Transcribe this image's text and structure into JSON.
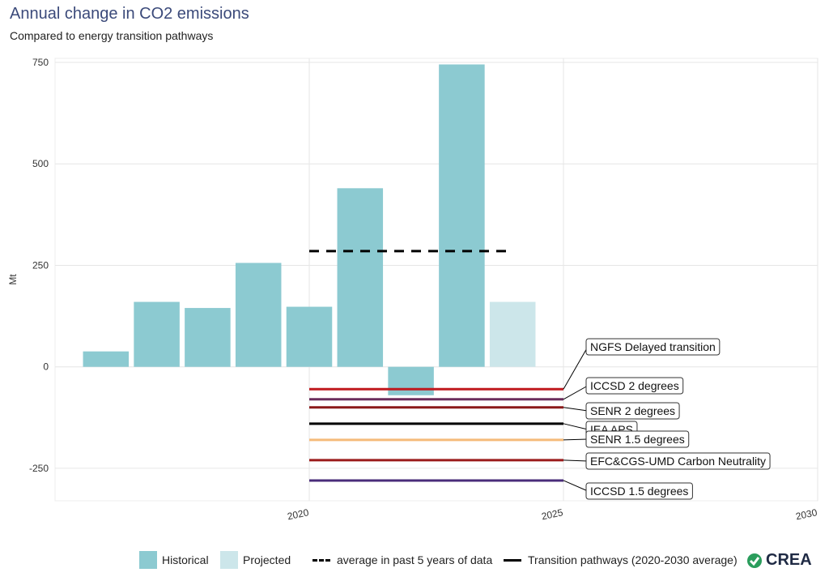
{
  "chart_data": {
    "type": "bar",
    "title": "Annual change in CO2 emissions",
    "subtitle": "Compared to energy transition pathways",
    "ylabel": "Mt",
    "ylim": [
      -330,
      760
    ],
    "xlim": [
      2015.0,
      2030.0
    ],
    "x_ticks": [
      2020,
      2025,
      2030
    ],
    "y_ticks": [
      -250,
      0,
      250,
      500,
      750
    ],
    "grid": true,
    "legend_position": "bottom",
    "series": [
      {
        "name": "Historical",
        "color": "#8ccad1",
        "x": [
          2016,
          2017,
          2018,
          2019,
          2020,
          2021,
          2022,
          2023
        ],
        "values": [
          38,
          160,
          145,
          256,
          148,
          440,
          -70,
          745
        ]
      },
      {
        "name": "Projected",
        "color": "#cce6ea",
        "x": [
          2024
        ],
        "values": [
          160
        ]
      }
    ],
    "average": {
      "name": "average in past 5 years of data",
      "value": 285,
      "x_start": 2020,
      "x_end": 2024
    },
    "pathways_legend": "Transition pathways (2020-2030 average)",
    "pathways": [
      {
        "name": "NGFS Delayed transition",
        "value": -55,
        "color": "#c0191e"
      },
      {
        "name": "ICCSD 2 degrees",
        "value": -80,
        "color": "#6b2d5c"
      },
      {
        "name": "SENR 2 degrees",
        "value": -100,
        "color": "#8b1a1a"
      },
      {
        "name": "IEA APS",
        "value": -140,
        "color": "#000000"
      },
      {
        "name": "SENR 1.5 degrees",
        "value": -180,
        "color": "#f5bb7a"
      },
      {
        "name": "EFC&CGS-UMD Carbon Neutrality",
        "value": -230,
        "color": "#9b1b1b"
      },
      {
        "name": "ICCSD 1.5 degrees",
        "value": -280,
        "color": "#4a2c7a"
      }
    ],
    "pathways_x": [
      2020,
      2025
    ]
  },
  "legend": {
    "historical": "Historical",
    "projected": "Projected",
    "average": "average in past 5 years of data",
    "pathways": "Transition pathways (2020-2030 average)"
  },
  "logo_text": "CREA"
}
